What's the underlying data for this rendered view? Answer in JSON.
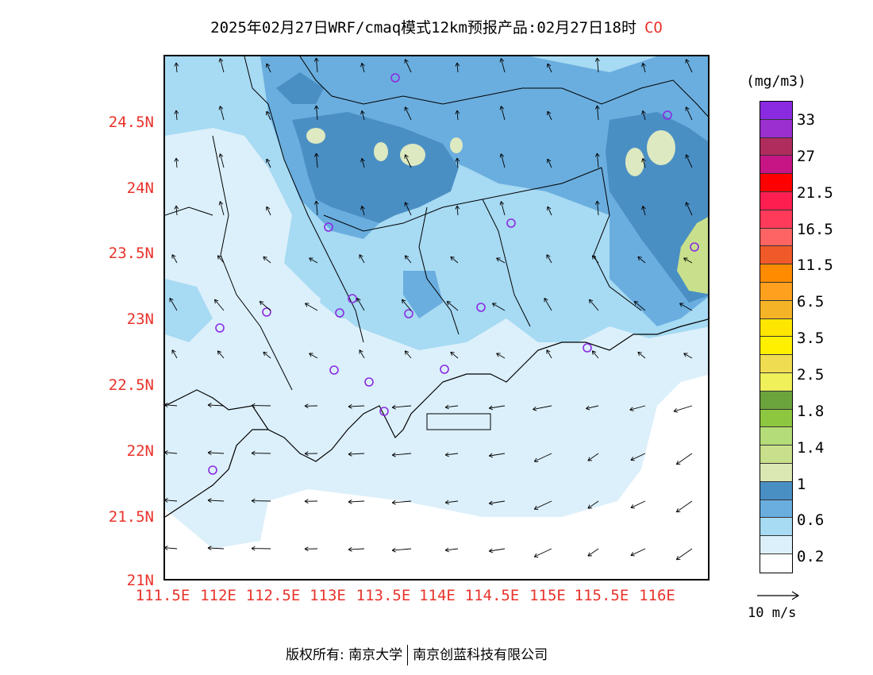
{
  "title": {
    "main": "2025年02月27日WRF/cmaq模式12km预报产品:02月27日18时",
    "species": "CO"
  },
  "map": {
    "type": "filled-contour-with-wind-vectors",
    "region": "Guangdong (Pearl River Delta)",
    "lat_labels": [
      "24.5N",
      "24N",
      "23.5N",
      "23N",
      "22.5N",
      "22N",
      "21.5N",
      "21N"
    ],
    "lon_labels": [
      "111.5E",
      "112E",
      "112.5E",
      "113E",
      "113.5E",
      "114E",
      "114.5E",
      "115E",
      "115.5E",
      "116E"
    ],
    "lat_range": [
      21,
      25
    ],
    "lon_range": [
      111.5,
      116.5
    ],
    "station_marker_color": "#8a2be2",
    "colors": {
      "lvl_0_2": "#dcf0fb",
      "lvl_0_6": "#a7daf3",
      "lvl_0_8": "#6aaedf",
      "lvl_1": "#4a8fc4",
      "lvl_1_2": "#dde9c0"
    }
  },
  "colorbar": {
    "unit": "(mg/m3)",
    "colors": [
      "#8a2be2",
      "#9b30d0",
      "#b02c5c",
      "#c71585",
      "#ff0000",
      "#ff1e50",
      "#ff3a5a",
      "#ff6464",
      "#f05a28",
      "#ff8c00",
      "#ffa01e",
      "#f5b428",
      "#ffe600",
      "#fff000",
      "#f0dc50",
      "#f0f05a",
      "#6ba33c",
      "#8dc63f",
      "#b4dc78",
      "#c8e08c",
      "#dce8b4",
      "#4a8fc4",
      "#6aaedf",
      "#a7daf3",
      "#dcf0fb",
      "#ffffff"
    ],
    "labels": [
      "33",
      "27",
      "21.5",
      "16.5",
      "11.5",
      "6.5",
      "3.5",
      "2.5",
      "1.8",
      "1.4",
      "1",
      "0.6",
      "0.2"
    ]
  },
  "vector_reference": {
    "label": "10 m/s"
  },
  "footer": {
    "owner_prefix": "版权所有: 南京大学",
    "owner_suffix": "南京创蓝科技有限公司"
  }
}
